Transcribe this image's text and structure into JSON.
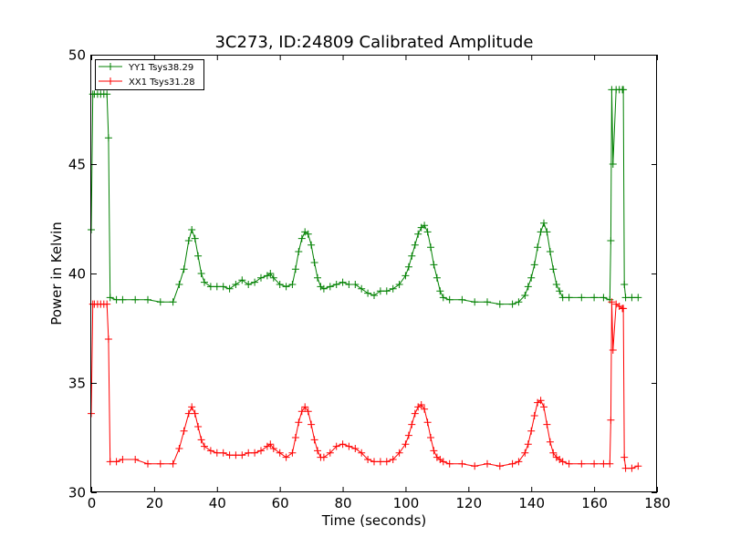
{
  "chart_data": {
    "type": "line",
    "title": "3C273, ID:24809 Calibrated Amplitude",
    "xlabel": "Time (seconds)",
    "ylabel": "Power in Kelvin",
    "xlim": [
      0,
      180
    ],
    "ylim": [
      30,
      50
    ],
    "xticks": [
      0,
      20,
      40,
      60,
      80,
      100,
      120,
      140,
      160,
      180
    ],
    "yticks": [
      30,
      35,
      40,
      45,
      50
    ],
    "grid": false,
    "legend_position": "top-left",
    "marker": "plus",
    "series": [
      {
        "name": "YY1 Tsys38.29",
        "color": "#008000",
        "x": [
          0,
          0.5,
          1,
          2,
          3,
          4,
          5,
          5.5,
          6,
          8,
          10,
          14,
          18,
          22,
          26,
          28,
          29.5,
          31,
          32,
          33,
          34,
          35,
          36,
          38,
          40,
          42,
          44,
          46,
          48,
          50,
          52,
          54,
          56,
          57,
          58,
          60,
          62,
          64,
          65,
          66,
          67,
          68,
          69,
          70,
          71,
          72,
          73,
          74,
          76,
          78,
          80,
          82,
          84,
          86,
          88,
          90,
          92,
          94,
          96,
          98,
          100,
          101,
          102,
          103,
          104,
          105,
          106,
          107,
          108,
          109,
          110,
          111,
          112,
          114,
          118,
          122,
          126,
          130,
          134,
          136,
          138,
          139,
          140,
          141,
          142,
          143,
          144,
          145,
          146,
          147,
          148,
          149,
          150,
          152,
          156,
          160,
          163,
          165,
          165.3,
          165.6,
          166,
          167,
          168,
          169,
          169.3,
          169.6,
          170,
          172,
          174
        ],
        "y": [
          42.0,
          48.2,
          48.2,
          48.2,
          48.2,
          48.2,
          48.2,
          46.2,
          38.9,
          38.8,
          38.8,
          38.8,
          38.8,
          38.7,
          38.7,
          39.5,
          40.2,
          41.5,
          42.0,
          41.6,
          40.8,
          40.0,
          39.6,
          39.4,
          39.4,
          39.4,
          39.3,
          39.5,
          39.7,
          39.5,
          39.6,
          39.8,
          39.9,
          40.0,
          39.8,
          39.5,
          39.4,
          39.5,
          40.2,
          41.0,
          41.6,
          41.9,
          41.8,
          41.3,
          40.5,
          39.8,
          39.4,
          39.3,
          39.4,
          39.5,
          39.6,
          39.5,
          39.5,
          39.3,
          39.1,
          39.0,
          39.2,
          39.2,
          39.3,
          39.5,
          39.9,
          40.3,
          40.8,
          41.3,
          41.8,
          42.1,
          42.2,
          41.9,
          41.2,
          40.4,
          39.8,
          39.2,
          38.9,
          38.8,
          38.8,
          38.7,
          38.7,
          38.6,
          38.6,
          38.7,
          39.0,
          39.4,
          39.8,
          40.4,
          41.2,
          41.9,
          42.3,
          41.9,
          41.0,
          40.2,
          39.5,
          39.2,
          38.9,
          38.9,
          38.9,
          38.9,
          38.9,
          38.8,
          41.5,
          48.4,
          45.0,
          48.4,
          48.4,
          48.4,
          48.4,
          39.5,
          38.9,
          38.9,
          38.9
        ]
      },
      {
        "name": "XX1 Tsys31.28",
        "color": "#ff0000",
        "x": [
          0,
          0.5,
          1,
          2,
          3,
          4,
          5,
          5.5,
          6,
          8,
          10,
          14,
          18,
          22,
          26,
          28,
          29.5,
          31,
          32,
          33,
          34,
          35,
          36,
          38,
          40,
          42,
          44,
          46,
          48,
          50,
          52,
          54,
          56,
          57,
          58,
          60,
          62,
          64,
          65,
          66,
          67,
          68,
          69,
          70,
          71,
          72,
          73,
          74,
          76,
          78,
          80,
          82,
          84,
          86,
          88,
          90,
          92,
          94,
          96,
          98,
          100,
          101,
          102,
          103,
          104,
          105,
          106,
          107,
          108,
          109,
          110,
          111,
          112,
          114,
          118,
          122,
          126,
          130,
          134,
          136,
          138,
          139,
          140,
          141,
          142,
          143,
          144,
          145,
          146,
          147,
          148,
          149,
          150,
          152,
          156,
          160,
          163,
          165,
          165.3,
          165.6,
          166,
          167,
          168,
          169,
          169.3,
          169.6,
          170,
          172,
          174
        ],
        "y": [
          33.6,
          38.6,
          38.6,
          38.6,
          38.6,
          38.6,
          38.6,
          37.0,
          31.4,
          31.4,
          31.5,
          31.5,
          31.3,
          31.3,
          31.3,
          32.0,
          32.8,
          33.6,
          33.9,
          33.6,
          33.0,
          32.4,
          32.1,
          31.9,
          31.8,
          31.8,
          31.7,
          31.7,
          31.7,
          31.8,
          31.8,
          31.9,
          32.1,
          32.2,
          32.0,
          31.8,
          31.6,
          31.8,
          32.5,
          33.2,
          33.7,
          33.9,
          33.7,
          33.1,
          32.4,
          31.9,
          31.6,
          31.6,
          31.8,
          32.1,
          32.2,
          32.1,
          32.0,
          31.8,
          31.5,
          31.4,
          31.4,
          31.4,
          31.5,
          31.8,
          32.2,
          32.6,
          33.1,
          33.6,
          33.9,
          34.0,
          33.8,
          33.2,
          32.5,
          31.9,
          31.6,
          31.5,
          31.4,
          31.3,
          31.3,
          31.2,
          31.3,
          31.2,
          31.3,
          31.4,
          31.8,
          32.2,
          32.8,
          33.5,
          34.1,
          34.2,
          33.9,
          33.1,
          32.3,
          31.8,
          31.6,
          31.5,
          31.4,
          31.3,
          31.3,
          31.3,
          31.3,
          31.3,
          33.3,
          38.7,
          36.5,
          38.6,
          38.5,
          38.4,
          38.4,
          31.6,
          31.1,
          31.1,
          31.2
        ]
      }
    ]
  }
}
